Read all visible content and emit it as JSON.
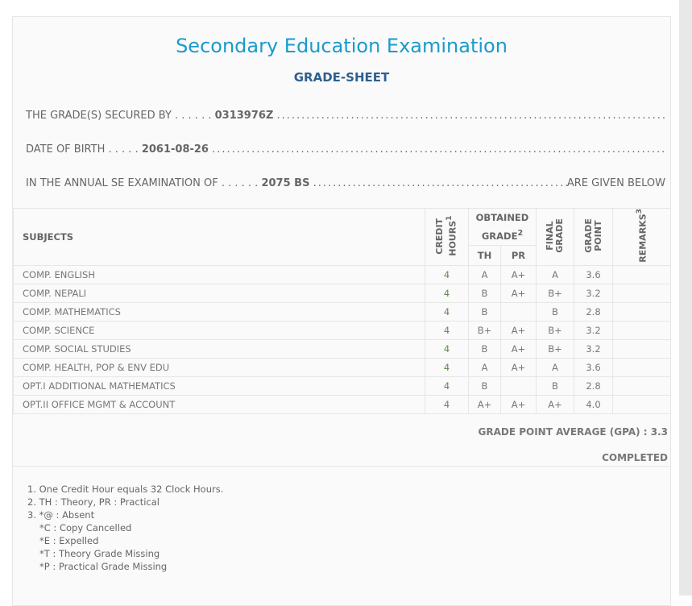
{
  "header": {
    "title": "Secondary Education Examination",
    "subtitle": "GRADE-SHEET"
  },
  "info": {
    "secured_label": "THE GRADE(S) SECURED BY . . . . . .",
    "secured_value": "0313976Z",
    "dob_label": "DATE OF BIRTH . . . . .",
    "dob_value": "2061-08-26",
    "exam_label": "IN THE ANNUAL SE EXAMINATION OF . . . . . .",
    "exam_value": "2075 BS",
    "exam_suffix": "ARE GIVEN BELOW"
  },
  "table": {
    "headers": {
      "subjects": "SUBJECTS",
      "credit": "CREDIT HOURS",
      "credit_sup": "1",
      "obtained": "OBTAINED GRADE",
      "obtained_sup": "2",
      "th": "TH",
      "pr": "PR",
      "final": "FINAL GRADE",
      "point": "GRADE POINT",
      "remarks": "REMARKS",
      "remarks_sup": "3"
    },
    "rows": [
      {
        "subject": "COMP. ENGLISH",
        "credit": "4",
        "th": "A",
        "pr": "A+",
        "final": "A",
        "point": "3.6",
        "remarks": ""
      },
      {
        "subject": "COMP. NEPALI",
        "credit": "4",
        "th": "B",
        "pr": "A+",
        "final": "B+",
        "point": "3.2",
        "remarks": ""
      },
      {
        "subject": "COMP. MATHEMATICS",
        "credit": "4",
        "th": "B",
        "pr": "",
        "final": "B",
        "point": "2.8",
        "remarks": ""
      },
      {
        "subject": "COMP. SCIENCE",
        "credit": "4",
        "th": "B+",
        "pr": "A+",
        "final": "B+",
        "point": "3.2",
        "remarks": ""
      },
      {
        "subject": "COMP. SOCIAL STUDIES",
        "credit": "4",
        "th": "B",
        "pr": "A+",
        "final": "B+",
        "point": "3.2",
        "remarks": ""
      },
      {
        "subject": "COMP. HEALTH, POP & ENV EDU",
        "credit": "4",
        "th": "A",
        "pr": "A+",
        "final": "A",
        "point": "3.6",
        "remarks": ""
      },
      {
        "subject": "OPT.I ADDITIONAL MATHEMATICS",
        "credit": "4",
        "th": "B",
        "pr": "",
        "final": "B",
        "point": "2.8",
        "remarks": ""
      },
      {
        "subject": "OPT.II OFFICE MGMT & ACCOUNT",
        "credit": "4",
        "th": "A+",
        "pr": "A+",
        "final": "A+",
        "point": "4.0",
        "remarks": ""
      }
    ]
  },
  "gpa": "GRADE POINT AVERAGE (GPA) : 3.3",
  "status": "COMPLETED",
  "notes": [
    "1. One Credit Hour equals 32 Clock Hours.",
    "2. TH : Theory, PR : Practical",
    "3. *@ : Absent",
    "*C : Copy Cancelled",
    "*E : Expelled",
    "*T : Theory Grade Missing",
    "*P : Practical Grade Missing"
  ]
}
